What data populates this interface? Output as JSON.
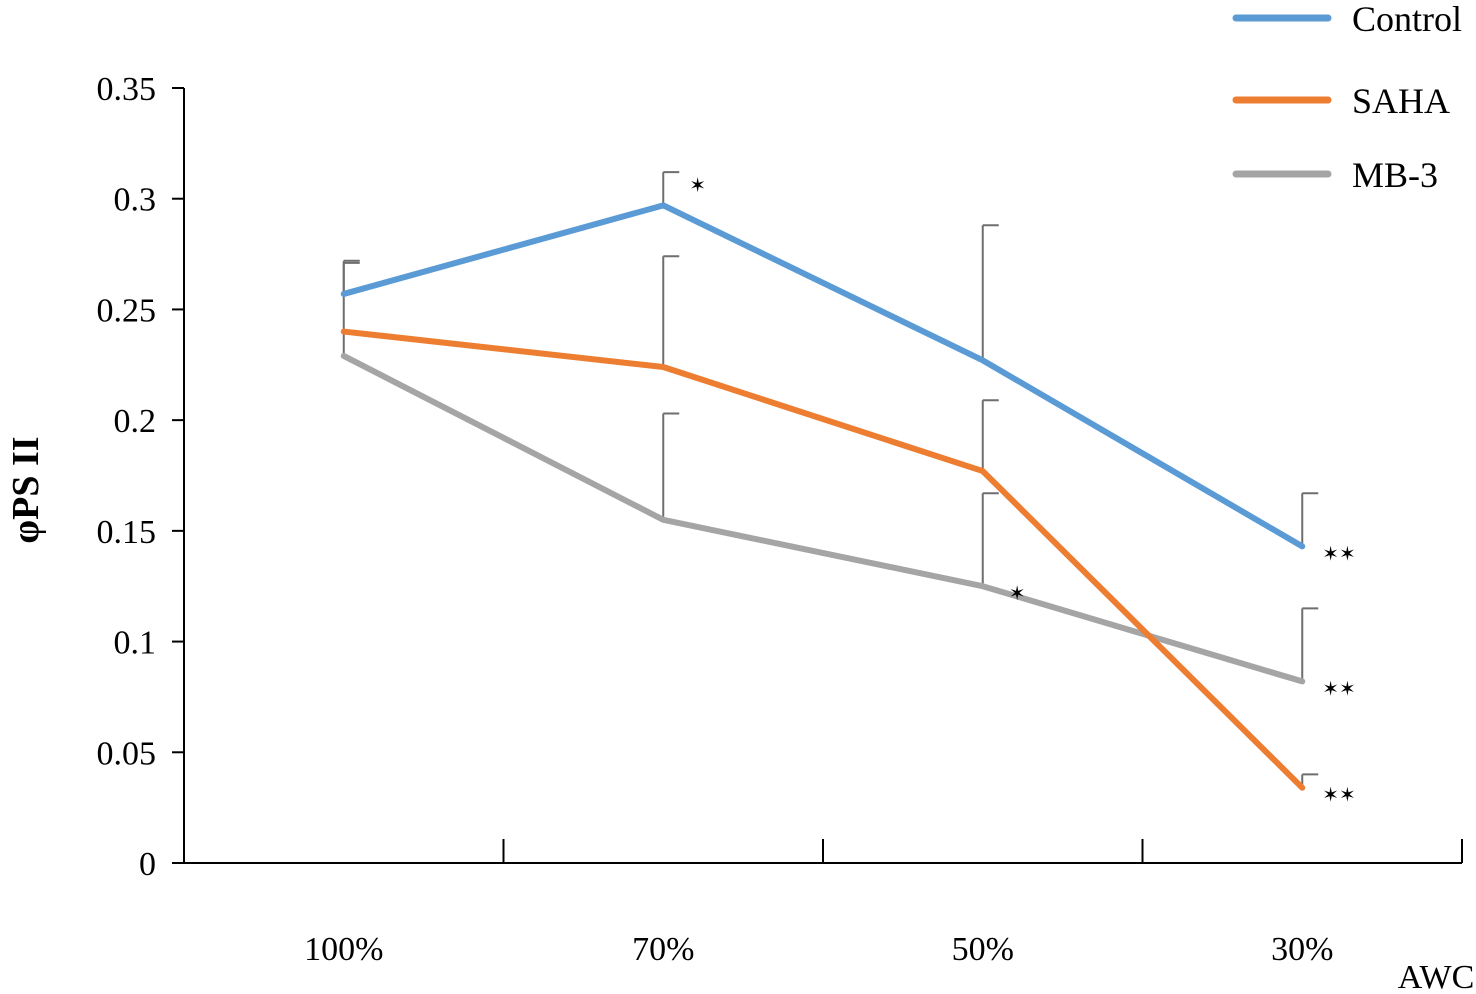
{
  "chart_data": {
    "type": "line",
    "xlabel": "AWC",
    "ylabel": "φPS II",
    "categories": [
      "100%",
      "70%",
      "50%",
      "30%"
    ],
    "ylim": [
      0,
      0.35
    ],
    "yticks": [
      "0",
      "0.05",
      "0.1",
      "0.15",
      "0.2",
      "0.25",
      "0.3",
      "0.35"
    ],
    "grid": false,
    "legend_position": "top-right",
    "series": [
      {
        "name": "Control",
        "color": "#5b9bd5",
        "values": [
          0.257,
          0.297,
          0.227,
          0.143
        ],
        "error_upper": [
          0.272,
          0.312,
          0.288,
          0.167
        ],
        "significance": [
          "",
          "*",
          "",
          "**"
        ]
      },
      {
        "name": "SAHA",
        "color": "#ed7d31",
        "values": [
          0.24,
          0.224,
          0.177,
          0.034
        ],
        "error_upper": [
          0.271,
          0.274,
          0.209,
          0.04
        ],
        "significance": [
          "",
          "",
          "",
          "**"
        ]
      },
      {
        "name": "MB-3",
        "color": "#a5a5a5",
        "values": [
          0.229,
          0.155,
          0.125,
          0.082
        ],
        "error_upper": [
          0.24,
          0.203,
          0.167,
          0.115
        ],
        "significance": [
          "",
          "",
          "*",
          "**"
        ]
      }
    ]
  }
}
